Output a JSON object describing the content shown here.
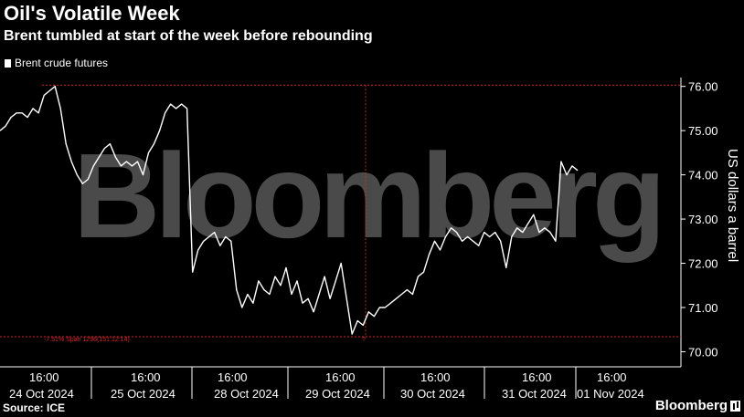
{
  "title": "Oil's Volatile Week",
  "subtitle": "Brent tumbled at start of the week before rebounding",
  "legend_label": "Brent crude futures",
  "source": "Source: ICE",
  "brand": "Bloomberg",
  "watermark": "Bloomberg",
  "yaxis_title": "US dollars a barrel",
  "span_annotation": "-7.51% Span 1296(151:12:14)",
  "annotation_marker": "?",
  "colors": {
    "background": "#000000",
    "line": "#ffffff",
    "crosshair": "#e0202a",
    "watermark": "#4a4a4a"
  },
  "chart_data": {
    "type": "line",
    "x_tick_labels": [
      {
        "time": "16:00",
        "date": "24 Oct 2024"
      },
      {
        "time": "16:00",
        "date": "25 Oct 2024"
      },
      {
        "time": "",
        "date": "28 Oct 2024"
      },
      {
        "time": "16:00",
        "date": "29 Oct 2024"
      },
      {
        "time": "16:00",
        "date": "30 Oct 2024"
      },
      {
        "time": "16:00",
        "date": "31 Oct 2024"
      },
      {
        "time": "16:00",
        "date": "01 Nov 2024"
      }
    ],
    "extra_time_labels": [
      "16:00"
    ],
    "y_ticks": [
      "70.00",
      "71.00",
      "72.00",
      "73.00",
      "74.00",
      "75.00",
      "76.00"
    ],
    "ylim": [
      69.7,
      76.2
    ],
    "ylabel": "US dollars a barrel",
    "reference_high": 76.03,
    "reference_low": 70.34,
    "grid": false,
    "legend_position": "top-left",
    "series": [
      {
        "name": "Brent crude futures",
        "values": [
          75.0,
          75.1,
          75.3,
          75.4,
          75.4,
          75.3,
          75.5,
          75.4,
          75.8,
          75.9,
          76.0,
          75.5,
          74.7,
          74.3,
          74.0,
          73.8,
          73.9,
          74.2,
          74.4,
          74.6,
          74.7,
          74.4,
          74.2,
          74.3,
          74.2,
          74.3,
          74.0,
          74.5,
          74.7,
          75.0,
          75.4,
          75.6,
          75.5,
          75.6,
          75.5,
          71.8,
          72.3,
          72.5,
          72.6,
          72.7,
          72.4,
          72.6,
          72.5,
          71.4,
          71.0,
          71.3,
          71.1,
          71.6,
          71.4,
          71.3,
          71.7,
          71.5,
          71.9,
          71.3,
          71.6,
          71.1,
          71.2,
          70.9,
          71.3,
          71.7,
          71.2,
          71.6,
          72.0,
          71.2,
          70.4,
          70.7,
          70.6,
          70.9,
          70.8,
          71.0,
          71.0,
          71.1,
          71.2,
          71.3,
          71.4,
          71.3,
          71.7,
          71.8,
          72.2,
          72.5,
          72.3,
          72.6,
          72.8,
          72.7,
          72.5,
          72.6,
          72.5,
          72.4,
          72.7,
          72.6,
          72.7,
          72.5,
          71.9,
          72.6,
          72.8,
          72.7,
          72.9,
          73.1,
          72.7,
          72.8,
          72.7,
          72.5,
          74.3,
          74.0,
          74.2,
          74.1
        ]
      }
    ]
  }
}
